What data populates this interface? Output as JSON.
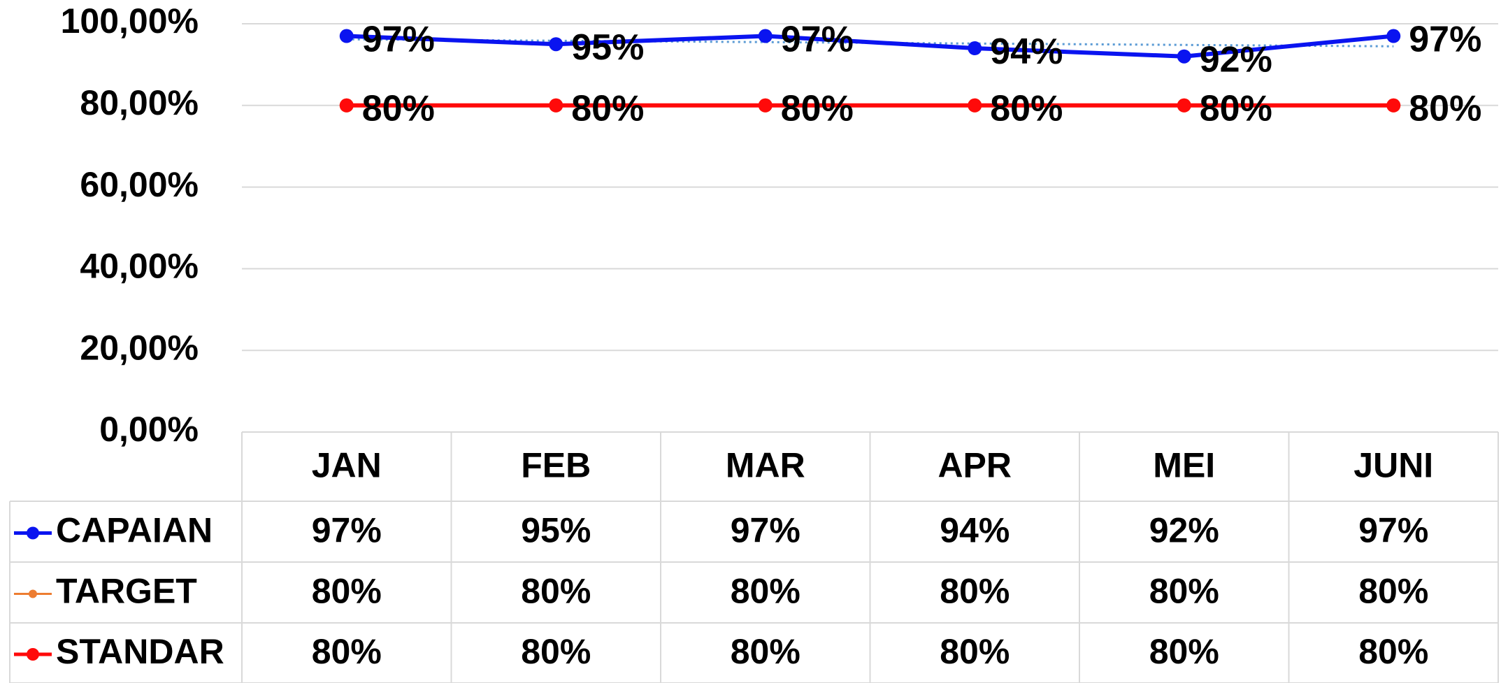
{
  "chart_data": {
    "type": "line",
    "categories": [
      "JAN",
      "FEB",
      "MAR",
      "APR",
      "MEI",
      "JUNI"
    ],
    "series": [
      {
        "name": "CAPAIAN",
        "color": "#0a14f0",
        "values": [
          97,
          95,
          97,
          94,
          92,
          97
        ],
        "value_labels": [
          "97%",
          "95%",
          "97%",
          "94%",
          "92%",
          "97%"
        ]
      },
      {
        "name": "TARGET",
        "color": "#ed7d31",
        "values": [
          80,
          80,
          80,
          80,
          80,
          80
        ],
        "value_labels": [
          "80%",
          "80%",
          "80%",
          "80%",
          "80%",
          "80%"
        ]
      },
      {
        "name": "STANDAR",
        "color": "#ff0a0a",
        "values": [
          80,
          80,
          80,
          80,
          80,
          80
        ],
        "value_labels": [
          "80%",
          "80%",
          "80%",
          "80%",
          "80%",
          "80%"
        ]
      }
    ],
    "ylim": [
      0,
      100
    ],
    "yticks": [
      {
        "value": 0,
        "label": "0,00%"
      },
      {
        "value": 20,
        "label": "20,00%"
      },
      {
        "value": 40,
        "label": "40,00%"
      },
      {
        "value": 60,
        "label": "60,00%"
      },
      {
        "value": 80,
        "label": "80,00%"
      },
      {
        "value": 100,
        "label": "100,00%"
      }
    ],
    "grid": true,
    "trendline": true
  }
}
